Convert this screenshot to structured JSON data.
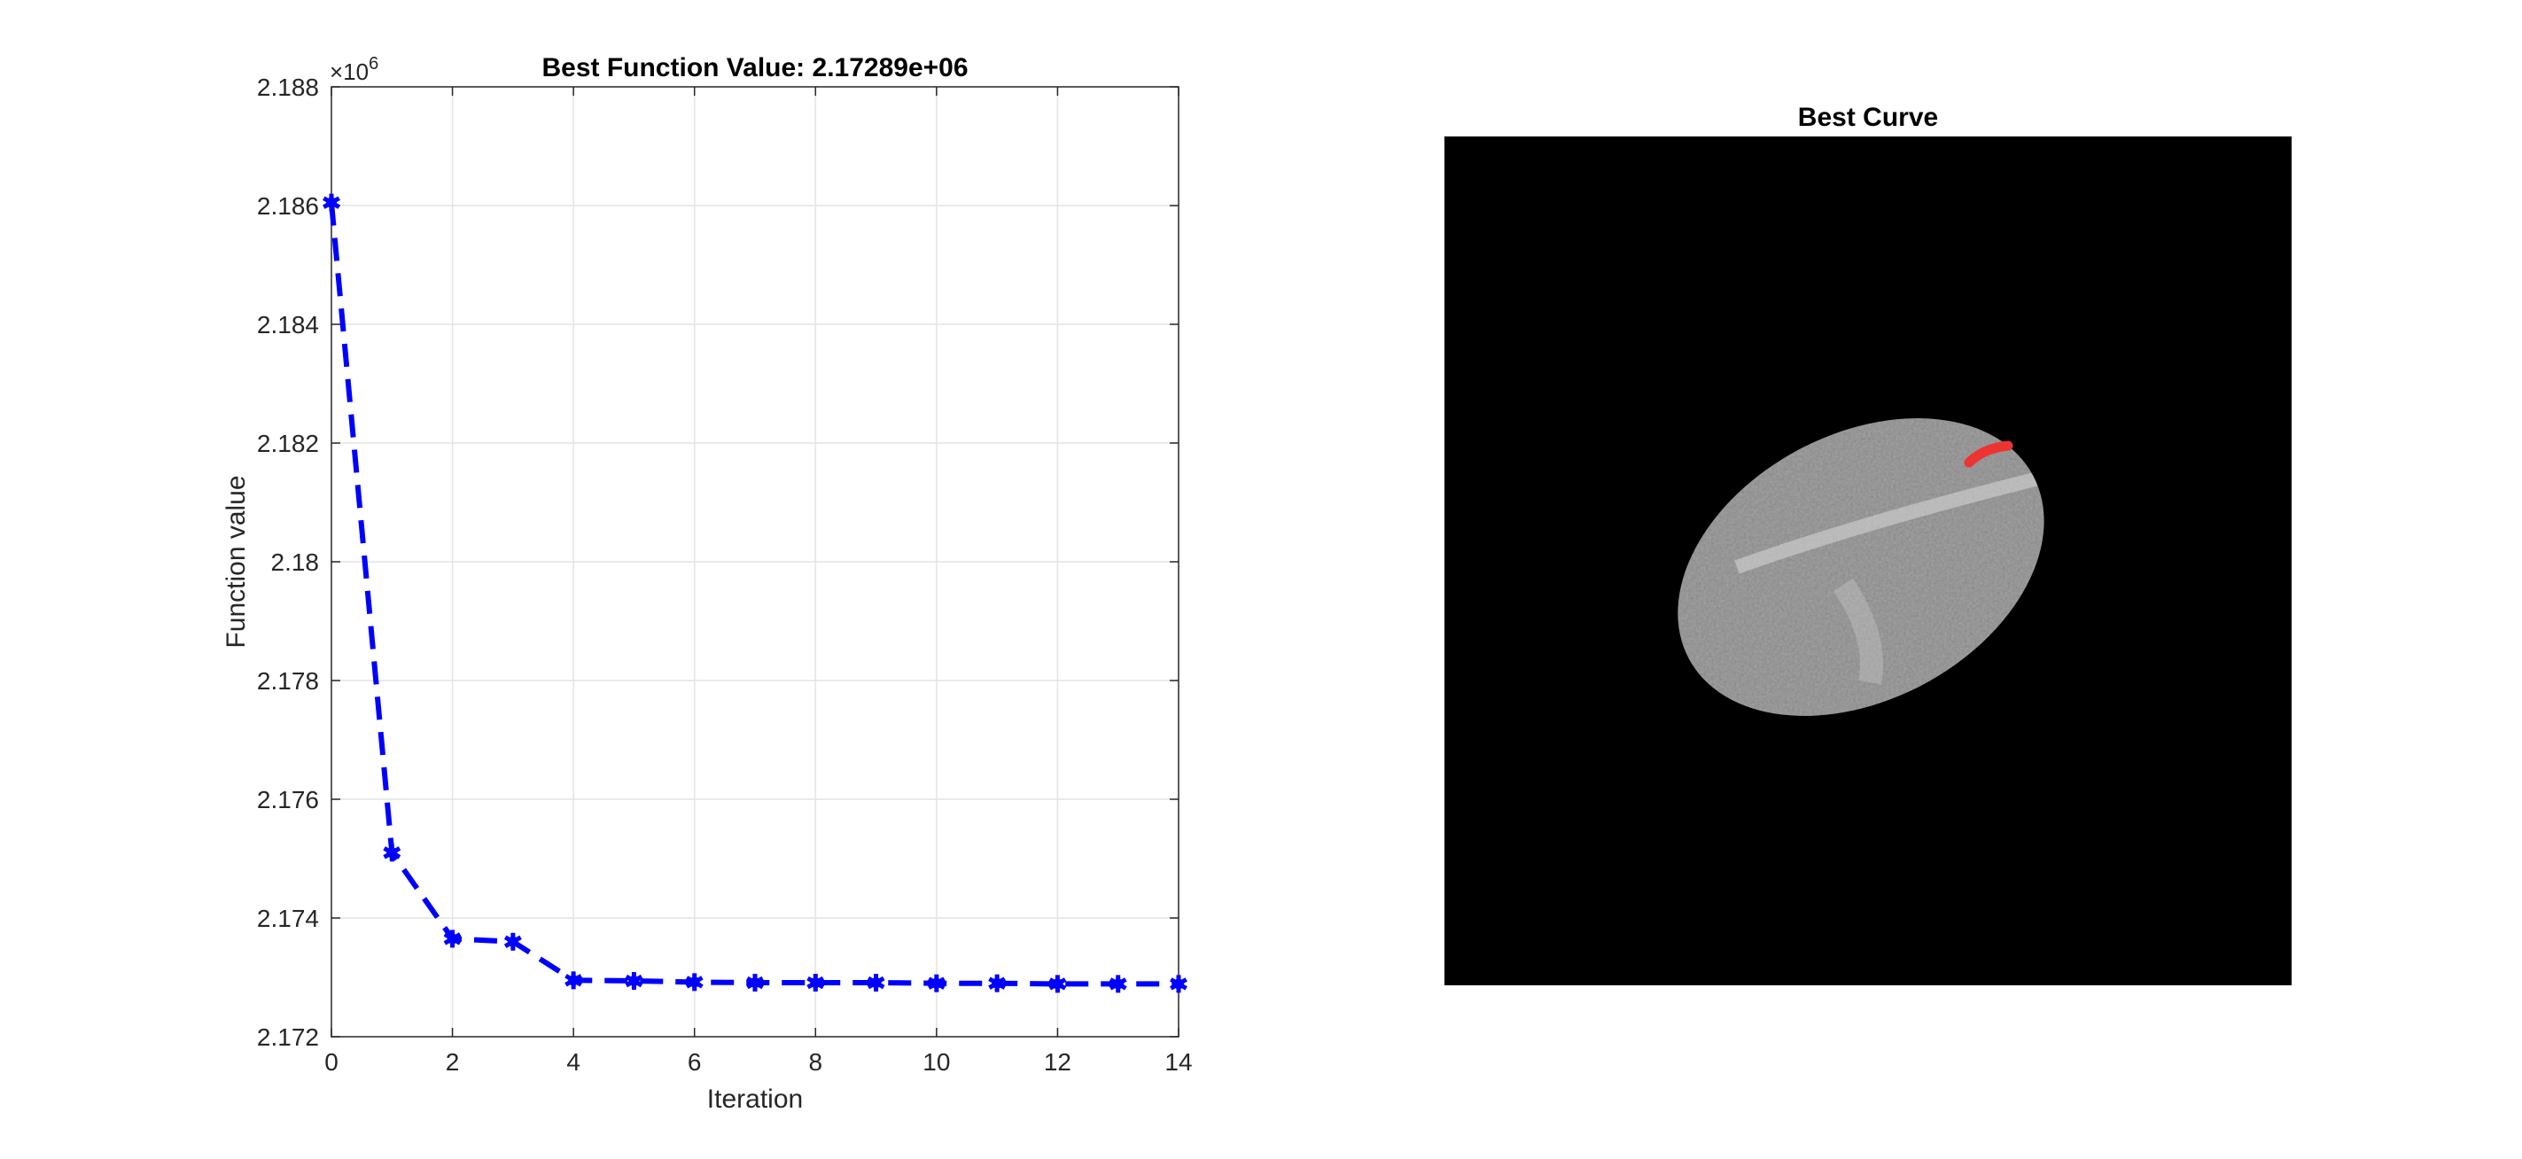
{
  "chart_data": [
    {
      "type": "line",
      "title": "Best Function Value: 2.17289e+06",
      "xlabel": "Iteration",
      "ylabel": "Function value",
      "exponent_label": "×10",
      "exponent_power": "6",
      "xlim": [
        0,
        14
      ],
      "ylim": [
        2.172,
        2.188
      ],
      "x_ticks": [
        "0",
        "2",
        "4",
        "6",
        "8",
        "10",
        "12",
        "14"
      ],
      "y_ticks": [
        "2.172",
        "2.174",
        "2.176",
        "2.178",
        "2.18",
        "2.182",
        "2.184",
        "2.186",
        "2.188"
      ],
      "grid": true,
      "line_style": "dashed",
      "marker": "asterisk",
      "color": "#0000ff",
      "x": [
        0,
        1,
        2,
        3,
        4,
        5,
        6,
        7,
        8,
        9,
        10,
        11,
        12,
        13,
        14
      ],
      "y": [
        2.18605,
        2.1751,
        2.17365,
        2.1736,
        2.17295,
        2.17294,
        2.17292,
        2.17291,
        2.17291,
        2.17291,
        2.1729,
        2.1729,
        2.17289,
        2.17289,
        2.17289
      ]
    },
    {
      "type": "image",
      "title": "Best Curve",
      "background_color": "#000000",
      "blob_color": "#a8a8a8",
      "curve_color": "#ee3333"
    }
  ]
}
